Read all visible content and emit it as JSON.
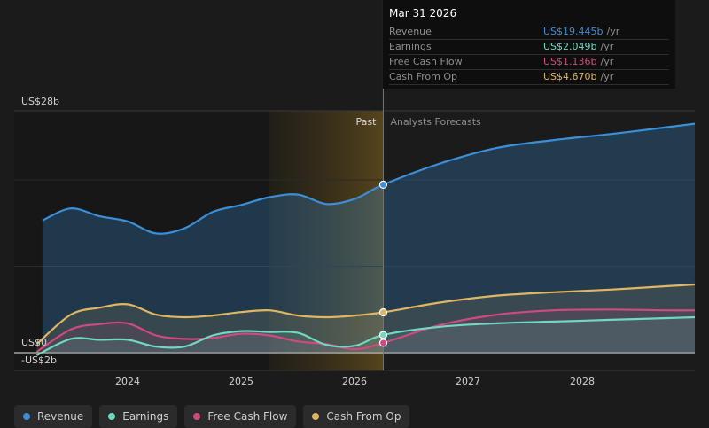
{
  "chart_data": {
    "type": "area",
    "y_axis": {
      "top_label": "US$28b",
      "zero_label": "US$0",
      "bottom_label": "-US$2b",
      "ylim": [
        -2,
        28
      ]
    },
    "x_ticks": [
      "2024",
      "2025",
      "2026",
      "2027",
      "2028"
    ],
    "xlim": [
      2023.1,
      2029.0
    ],
    "past_label": "Past",
    "forecast_label": "Analysts Forecasts",
    "past_end": 2026.25,
    "highlight_start": 2025.25,
    "series": [
      {
        "name": "Revenue",
        "color": "#3b8fd9",
        "x": [
          2023.25,
          2023.5,
          2023.75,
          2024.0,
          2024.25,
          2024.5,
          2024.75,
          2025.0,
          2025.25,
          2025.5,
          2025.75,
          2026.0,
          2026.25,
          2026.75,
          2027.25,
          2027.75,
          2028.25,
          2028.75,
          2029.0
        ],
        "y": [
          15.3,
          16.7,
          15.8,
          15.2,
          13.8,
          14.4,
          16.3,
          17.1,
          18.0,
          18.3,
          17.2,
          17.8,
          19.445,
          21.9,
          23.7,
          24.6,
          25.3,
          26.1,
          26.5
        ]
      },
      {
        "name": "Earnings",
        "color": "#6fd9c2",
        "x": [
          2023.2,
          2023.5,
          2023.75,
          2024.0,
          2024.25,
          2024.5,
          2024.75,
          2025.0,
          2025.25,
          2025.5,
          2025.75,
          2026.0,
          2026.25,
          2026.75,
          2027.25,
          2027.75,
          2028.25,
          2028.75,
          2029.0
        ],
        "y": [
          -0.3,
          1.6,
          1.5,
          1.5,
          0.7,
          0.7,
          2.0,
          2.5,
          2.4,
          2.3,
          0.9,
          0.8,
          2.049,
          3.0,
          3.4,
          3.6,
          3.8,
          4.0,
          4.1
        ]
      },
      {
        "name": "Free Cash Flow",
        "color": "#cf4a7e",
        "x": [
          2023.2,
          2023.5,
          2023.75,
          2024.0,
          2024.25,
          2024.5,
          2024.75,
          2025.0,
          2025.25,
          2025.5,
          2025.75,
          2026.0,
          2026.25,
          2026.75,
          2027.25,
          2027.75,
          2028.25,
          2028.75,
          2029.0
        ],
        "y": [
          0.1,
          2.7,
          3.3,
          3.4,
          2.0,
          1.6,
          1.7,
          2.2,
          2.0,
          1.3,
          1.0,
          0.4,
          1.136,
          3.2,
          4.4,
          4.9,
          5.0,
          4.9,
          4.9
        ]
      },
      {
        "name": "Cash From Op",
        "color": "#e0b660",
        "x": [
          2023.2,
          2023.5,
          2023.75,
          2024.0,
          2024.25,
          2024.5,
          2024.75,
          2025.0,
          2025.25,
          2025.5,
          2025.75,
          2026.0,
          2026.25,
          2026.75,
          2027.25,
          2027.75,
          2028.25,
          2028.75,
          2029.0
        ],
        "y": [
          1.0,
          4.4,
          5.2,
          5.6,
          4.4,
          4.1,
          4.3,
          4.7,
          4.9,
          4.3,
          4.1,
          4.3,
          4.67,
          5.8,
          6.6,
          7.0,
          7.3,
          7.7,
          7.9
        ]
      }
    ]
  },
  "tooltip": {
    "date": "Mar 31 2026",
    "rows": [
      {
        "name": "Revenue",
        "value": "US$19.445b",
        "unit": "/yr",
        "color": "#3b8fd9"
      },
      {
        "name": "Earnings",
        "value": "US$2.049b",
        "unit": "/yr",
        "color": "#6fd9c2"
      },
      {
        "name": "Free Cash Flow",
        "value": "US$1.136b",
        "unit": "/yr",
        "color": "#cf4a7e"
      },
      {
        "name": "Cash From Op",
        "value": "US$4.670b",
        "unit": "/yr",
        "color": "#e0b660"
      }
    ]
  },
  "legend": [
    {
      "label": "Revenue",
      "color": "#3b8fd9"
    },
    {
      "label": "Earnings",
      "color": "#6fd9c2"
    },
    {
      "label": "Free Cash Flow",
      "color": "#cf4a7e"
    },
    {
      "label": "Cash From Op",
      "color": "#e0b660"
    }
  ]
}
